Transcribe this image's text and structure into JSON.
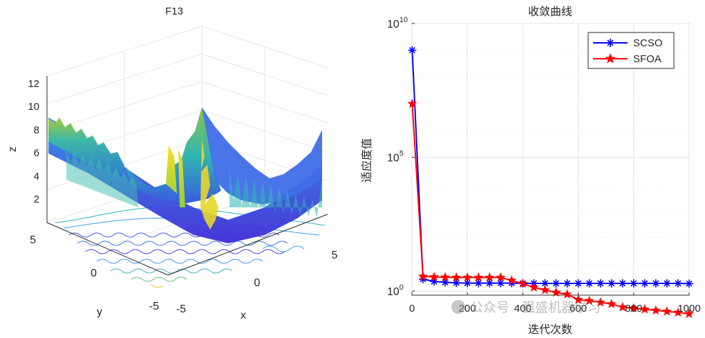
{
  "chart_data": [
    {
      "type": "surface3d",
      "title": "F13",
      "xlabel": "x",
      "ylabel": "y",
      "zlabel": "z",
      "x_ticks": [
        "-5",
        "0",
        "5"
      ],
      "y_ticks": [
        "-5",
        "0",
        "5"
      ],
      "z_ticks": [
        "2",
        "4",
        "6",
        "8",
        "10",
        "12"
      ],
      "xlim": [
        -5,
        5
      ],
      "ylim": [
        -5,
        5
      ],
      "zlim": [
        0,
        13
      ],
      "colormap": "parula",
      "contour_floor": true
    },
    {
      "type": "line",
      "title": "收敛曲线",
      "xlabel": "迭代次数",
      "ylabel": "适应度值",
      "yscale": "log",
      "xlim": [
        0,
        1000
      ],
      "ylim_exp": [
        -0.15,
        10
      ],
      "x_ticks": [
        "0",
        "200",
        "400",
        "600",
        "800",
        "1000"
      ],
      "y_ticks": [
        {
          "base": "10",
          "exp": "0",
          "value": 0
        },
        {
          "base": "10",
          "exp": "5",
          "value": 5
        },
        {
          "base": "10",
          "exp": "10",
          "value": 10
        }
      ],
      "grid": true,
      "legend_position": "top-right",
      "series": [
        {
          "name": "SCSO",
          "color": "#0000ff",
          "marker": "asterisk",
          "x": [
            1,
            40,
            80,
            120,
            160,
            200,
            240,
            280,
            320,
            360,
            400,
            440,
            480,
            520,
            560,
            600,
            640,
            680,
            720,
            760,
            800,
            840,
            880,
            920,
            960,
            1000
          ],
          "log10_y": [
            9.0,
            0.45,
            0.36,
            0.33,
            0.31,
            0.3,
            0.3,
            0.3,
            0.3,
            0.3,
            0.29,
            0.29,
            0.29,
            0.29,
            0.29,
            0.29,
            0.29,
            0.29,
            0.29,
            0.29,
            0.29,
            0.29,
            0.29,
            0.29,
            0.29,
            0.28
          ]
        },
        {
          "name": "SFOA",
          "color": "#ff0000",
          "marker": "pentagram",
          "x": [
            1,
            40,
            80,
            120,
            160,
            200,
            240,
            280,
            320,
            360,
            400,
            440,
            480,
            520,
            560,
            600,
            640,
            680,
            720,
            760,
            800,
            840,
            880,
            920,
            960,
            1000
          ],
          "log10_y": [
            7.0,
            0.55,
            0.53,
            0.52,
            0.51,
            0.51,
            0.51,
            0.51,
            0.51,
            0.4,
            0.28,
            0.14,
            0.04,
            -0.05,
            -0.12,
            -0.32,
            -0.36,
            -0.42,
            -0.48,
            -0.6,
            -0.64,
            -0.68,
            -0.72,
            -0.76,
            -0.8,
            -0.85
          ]
        }
      ]
    }
  ],
  "watermark": "公众号 · 强盛机器学习"
}
